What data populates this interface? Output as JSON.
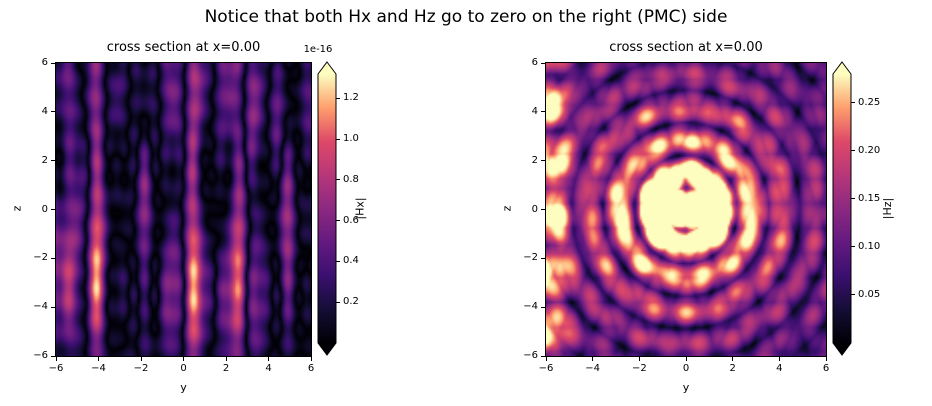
{
  "suptitle": "Notice that both Hx and Hz go to zero on the right (PMC) side",
  "colors": {
    "background": "#ffffff",
    "text": "#000000",
    "axes_spine": "#000000",
    "magma_stops": [
      [
        0.0,
        "#000004"
      ],
      [
        0.125,
        "#140e36"
      ],
      [
        0.25,
        "#3b0f70"
      ],
      [
        0.375,
        "#641a80"
      ],
      [
        0.5,
        "#8c2981"
      ],
      [
        0.625,
        "#b73779"
      ],
      [
        0.75,
        "#de4968"
      ],
      [
        0.875,
        "#fe9f6d"
      ],
      [
        1.0,
        "#fcfdbf"
      ]
    ]
  },
  "chart_data": [
    {
      "type": "heatmap",
      "title": "cross section at x=0.00",
      "xlabel": "y",
      "ylabel": "z",
      "xlim": [
        -6,
        6
      ],
      "ylim": [
        -6,
        6
      ],
      "xticks": [
        -6,
        -4,
        -2,
        0,
        2,
        4,
        6
      ],
      "yticks": [
        6,
        4,
        2,
        0,
        -2,
        -4,
        -6
      ],
      "colormap": "magma",
      "colorbar": {
        "label": "|Hx|",
        "offset_text": "1e-16",
        "ticks": [
          0.2,
          0.4,
          0.6,
          0.8,
          1.0,
          1.2
        ],
        "tick_decimals": 1,
        "vmin": 0.0,
        "vmax": 1.32,
        "extend": "both"
      },
      "value_model": {
        "kind": "stripe-noise",
        "description": "machine-precision numerical noise (~1e-16) forming irregular vertical stripes; bright bands near y=-5.5,-3,2.3,4.6 and dark band near y=0",
        "zmod": 0.38,
        "noise": 0.16,
        "components": [
          {
            "fy": 1.55,
            "py": 2.4,
            "fz": 0.5,
            "pz": 1.1,
            "amp": 0.52
          },
          {
            "fy": 2.5,
            "py": 1.2,
            "fz": 0.8,
            "pz": 2.6,
            "amp": 0.46
          },
          {
            "fy": 4.2,
            "py": 1.5,
            "fz": 0.35,
            "pz": 0.4,
            "amp": 0.3
          },
          {
            "fy": 7.0,
            "py": 0.3,
            "fz": 1.2,
            "pz": 4.0,
            "amp": 0.18
          }
        ]
      }
    },
    {
      "type": "heatmap",
      "title": "cross section at x=0.00",
      "xlabel": "y",
      "ylabel": "z",
      "xlim": [
        -6,
        6
      ],
      "ylim": [
        -6,
        6
      ],
      "xticks": [
        -6,
        -4,
        -2,
        0,
        2,
        4,
        6
      ],
      "yticks": [
        6,
        4,
        2,
        0,
        -2,
        -4,
        -6
      ],
      "colormap": "magma",
      "colorbar": {
        "label": "|Hz|",
        "ticks": [
          0.05,
          0.1,
          0.15,
          0.2,
          0.25
        ],
        "tick_decimals": 2,
        "vmin": 0.0,
        "vmax": 0.28,
        "extend": "both"
      },
      "value_model": {
        "kind": "focus-rings",
        "description": "saturated double-lobed focal spot at (y=+-1, z=0), concentric interference rings decaying outward; bright blobs along left edge, field ~0 at right (PMC) edge",
        "core_amp": 0.5,
        "core_sy": 2.0,
        "core_sz": 1.15,
        "core_f": 1.5,
        "ring_amp": 0.38,
        "ring_f": 2.35,
        "ring_phase": -0.5,
        "ring_decay": 4.5,
        "left_amp": 0.22,
        "left_f": 1.35,
        "speckle": 0.11
      }
    }
  ]
}
